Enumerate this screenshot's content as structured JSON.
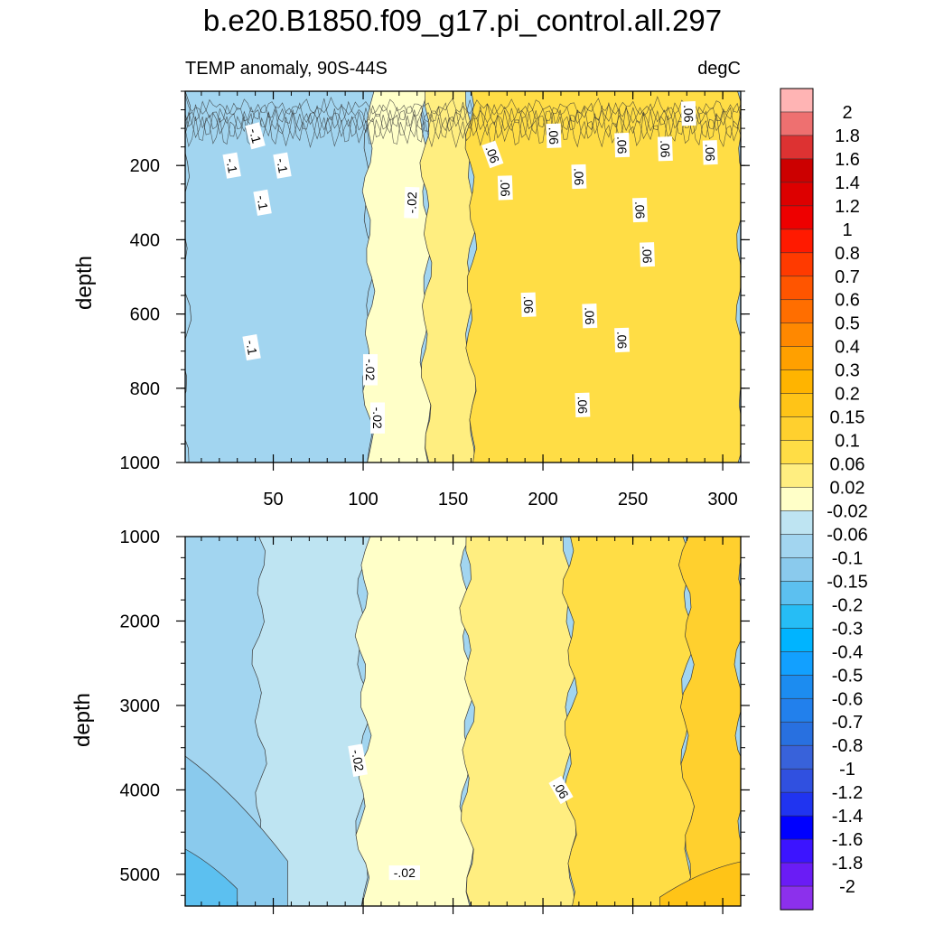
{
  "chart_data": {
    "type": "heatmap",
    "title": "b.e20.B1850.f09_g17.pi_control.all.297",
    "subtitle_left": "TEMP anomaly, 90S-44S",
    "subtitle_right": "degC",
    "xlabel": "",
    "ylabel": "depth",
    "xlim": [
      1,
      310
    ],
    "x_ticks": [
      50,
      100,
      150,
      200,
      250,
      300
    ],
    "x_minor_step": 10,
    "panels": [
      {
        "name": "upper-ocean",
        "ylim": [
          0,
          1000
        ],
        "y_ticks": [
          200,
          400,
          600,
          800,
          1000
        ],
        "y_minor_step": 50,
        "show_x_tick_labels": true,
        "base_value": -0.08,
        "bands": [
          {
            "x": [
              1,
              103
            ],
            "value": -0.08
          },
          {
            "x": [
              103,
              135
            ],
            "value": 0.0
          },
          {
            "x": [
              135,
              160
            ],
            "value": 0.04
          },
          {
            "x": [
              160,
              310
            ],
            "value": 0.08
          }
        ],
        "contour_labels": [
          {
            "text": "-.1",
            "x": 40,
            "y": 120,
            "angle": 75
          },
          {
            "text": "-.1",
            "x": 27,
            "y": 200,
            "angle": 80
          },
          {
            "text": "-.1",
            "x": 55,
            "y": 200,
            "angle": 80
          },
          {
            "text": "-.1",
            "x": 44,
            "y": 300,
            "angle": 80
          },
          {
            "text": "-.1",
            "x": 38,
            "y": 690,
            "angle": 80
          },
          {
            "text": "-.02",
            "x": 127,
            "y": 300,
            "angle": -88
          },
          {
            "text": "-.02",
            "x": 104,
            "y": 750,
            "angle": 90
          },
          {
            "text": "-.02",
            "x": 108,
            "y": 880,
            "angle": 90
          },
          {
            "text": ".06",
            "x": 172,
            "y": 170,
            "angle": 70
          },
          {
            "text": ".06",
            "x": 206,
            "y": 120,
            "angle": 88
          },
          {
            "text": ".06",
            "x": 179,
            "y": 260,
            "angle": 88
          },
          {
            "text": ".06",
            "x": 220,
            "y": 230,
            "angle": 88
          },
          {
            "text": ".06",
            "x": 244,
            "y": 145,
            "angle": 88
          },
          {
            "text": ".06",
            "x": 268,
            "y": 155,
            "angle": 88
          },
          {
            "text": ".06",
            "x": 293,
            "y": 165,
            "angle": 88
          },
          {
            "text": ".06",
            "x": 281,
            "y": 60,
            "angle": 88
          },
          {
            "text": ".06",
            "x": 254,
            "y": 320,
            "angle": 88
          },
          {
            "text": ".06",
            "x": 258,
            "y": 440,
            "angle": 88
          },
          {
            "text": ".06",
            "x": 192,
            "y": 575,
            "angle": 88
          },
          {
            "text": ".06",
            "x": 226,
            "y": 605,
            "angle": 88
          },
          {
            "text": ".06",
            "x": 244,
            "y": 670,
            "angle": 88
          },
          {
            "text": ".06",
            "x": 222,
            "y": 845,
            "angle": 88
          }
        ]
      },
      {
        "name": "deep-ocean",
        "ylim": [
          1000,
          5375
        ],
        "y_ticks": [
          1000,
          2000,
          3000,
          4000,
          5000
        ],
        "y_minor_step": 250,
        "show_x_tick_labels": false,
        "base_value": -0.08,
        "bands": [
          {
            "x": [
              42,
              100
            ],
            "value": -0.04
          },
          {
            "x": [
              100,
              158
            ],
            "value": 0.0
          },
          {
            "x": [
              158,
              215
            ],
            "value": 0.04
          },
          {
            "x": [
              215,
              280
            ],
            "value": 0.08
          },
          {
            "x": [
              280,
              310
            ],
            "value": 0.12
          }
        ],
        "bottom_features": [
          {
            "x": [
              1,
              58
            ],
            "y": [
              3600,
              5375
            ],
            "value": -0.125
          },
          {
            "x": [
              1,
              30
            ],
            "y": [
              4700,
              5375
            ],
            "value": -0.175
          },
          {
            "x": [
              265,
              310
            ],
            "y": [
              4850,
              5375
            ],
            "value": 0.175
          }
        ],
        "contour_labels": [
          {
            "text": "-.02",
            "x": 97,
            "y": 3650,
            "angle": 80
          },
          {
            "text": "-.02",
            "x": 123,
            "y": 4980,
            "angle": 0
          },
          {
            "text": ".06",
            "x": 210,
            "y": 4000,
            "angle": 60
          }
        ]
      }
    ],
    "colorbar": {
      "levels": [
        "2",
        "1.8",
        "1.6",
        "1.4",
        "1.2",
        "1",
        "0.8",
        "0.7",
        "0.6",
        "0.5",
        "0.4",
        "0.3",
        "0.2",
        "0.15",
        "0.1",
        "0.06",
        "0.02",
        "-0.02",
        "-0.06",
        "-0.1",
        "-0.15",
        "-0.2",
        "-0.3",
        "-0.4",
        "-0.5",
        "-0.6",
        "-0.7",
        "-0.8",
        "-1",
        "-1.2",
        "-1.4",
        "-1.6",
        "-1.8",
        "-2"
      ],
      "colors": [
        "#FFB4B4",
        "#EE7070",
        "#DD3232",
        "#CC0000",
        "#DD0000",
        "#EE0000",
        "#FF1A00",
        "#FF3A00",
        "#FF5500",
        "#FF6E00",
        "#FF8800",
        "#FFA000",
        "#FFB400",
        "#FFC417",
        "#FFD02E",
        "#FFDD45",
        "#FFEE80",
        "#FFFFC8",
        "#BEE4F2",
        "#A2D5F0",
        "#8ACAED",
        "#5CC0F0",
        "#26BDF5",
        "#00B4FF",
        "#12A0FF",
        "#1C8CF0",
        "#2280EC",
        "#2870E0",
        "#3862DA",
        "#3050E0",
        "#2034F0",
        "#0000FF",
        "#3C14FF",
        "#6A1CF5",
        "#8C30EC"
      ]
    }
  }
}
